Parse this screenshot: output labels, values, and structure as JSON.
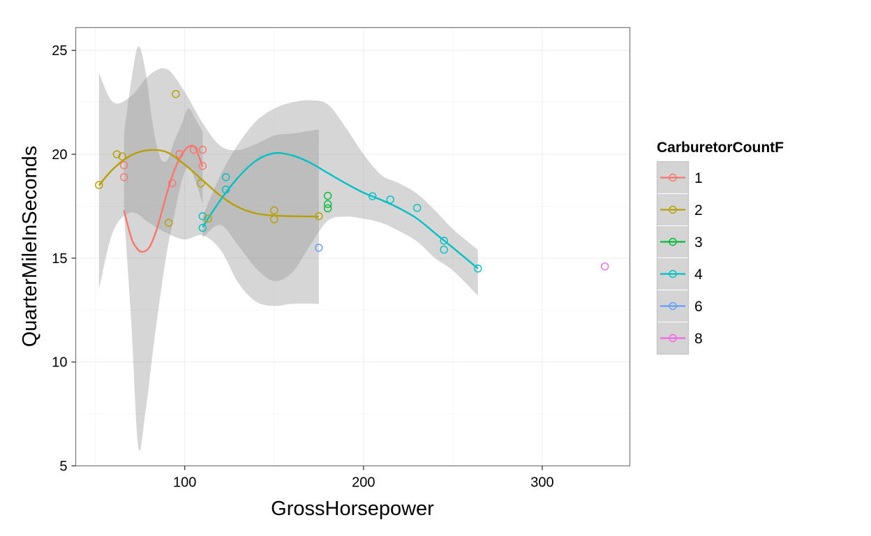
{
  "chart_data": {
    "type": "scatter",
    "xlabel": "GrossHorsepower",
    "ylabel": "QuarterMileInSeconds",
    "xlim": [
      39,
      349
    ],
    "ylim": [
      5,
      26.1
    ],
    "x_ticks": [
      100,
      200,
      300
    ],
    "y_ticks": [
      5,
      10,
      15,
      20,
      25
    ],
    "grid": true,
    "legend": {
      "title": "CarburetorCountF",
      "placement": "right"
    },
    "series": [
      {
        "name": "1",
        "color": "#F8766D",
        "points": [
          [
            66,
            19.47
          ],
          [
            66,
            18.9
          ],
          [
            93,
            18.61
          ],
          [
            97,
            20.01
          ],
          [
            105,
            20.22
          ],
          [
            110,
            19.44
          ],
          [
            110,
            20.22
          ]
        ],
        "smooth": [
          [
            66,
            17.3
          ],
          [
            70,
            16.0
          ],
          [
            73,
            15.5
          ],
          [
            76,
            15.3
          ],
          [
            80,
            15.5
          ],
          [
            84,
            16.3
          ],
          [
            88,
            17.5
          ],
          [
            92,
            18.7
          ],
          [
            96,
            19.6
          ],
          [
            100,
            20.2
          ],
          [
            103,
            20.4
          ],
          [
            106,
            20.3
          ],
          [
            110,
            19.4
          ]
        ],
        "ci_upper": [
          [
            66,
            21.0
          ],
          [
            70,
            23.5
          ],
          [
            74,
            25.2
          ],
          [
            78,
            24.0
          ],
          [
            82,
            21.5
          ],
          [
            86,
            19.9
          ],
          [
            90,
            19.7
          ],
          [
            94,
            20.6
          ],
          [
            98,
            21.4
          ],
          [
            102,
            22.2
          ],
          [
            106,
            21.7
          ],
          [
            110,
            21.1
          ]
        ],
        "ci_lower": [
          [
            66,
            17.2
          ],
          [
            70,
            12.0
          ],
          [
            74,
            5.9
          ],
          [
            78,
            7.6
          ],
          [
            82,
            10.4
          ],
          [
            86,
            13.0
          ],
          [
            90,
            15.3
          ],
          [
            94,
            17.0
          ],
          [
            98,
            18.6
          ],
          [
            102,
            19.4
          ],
          [
            106,
            18.7
          ],
          [
            110,
            17.6
          ]
        ]
      },
      {
        "name": "2",
        "color": "#B79F00",
        "points": [
          [
            52,
            18.52
          ],
          [
            62,
            20.0
          ],
          [
            65,
            19.9
          ],
          [
            91,
            16.7
          ],
          [
            95,
            22.9
          ],
          [
            109,
            18.6
          ],
          [
            113,
            16.9
          ],
          [
            150,
            16.87
          ],
          [
            150,
            17.3
          ],
          [
            175,
            17.02
          ]
        ],
        "smooth": [
          [
            52,
            18.5
          ],
          [
            60,
            19.3
          ],
          [
            70,
            19.95
          ],
          [
            80,
            20.2
          ],
          [
            90,
            20.1
          ],
          [
            100,
            19.5
          ],
          [
            110,
            18.75
          ],
          [
            120,
            18.0
          ],
          [
            130,
            17.45
          ],
          [
            140,
            17.15
          ],
          [
            150,
            17.05
          ],
          [
            160,
            17.02
          ],
          [
            175,
            17.0
          ]
        ],
        "ci_upper": [
          [
            52,
            23.9
          ],
          [
            60,
            22.5
          ],
          [
            70,
            22.8
          ],
          [
            80,
            23.8
          ],
          [
            90,
            24.1
          ],
          [
            100,
            23.0
          ],
          [
            110,
            21.5
          ],
          [
            120,
            20.4
          ],
          [
            130,
            20.2
          ],
          [
            140,
            20.5
          ],
          [
            150,
            20.9
          ],
          [
            160,
            21.0
          ],
          [
            175,
            21.2
          ]
        ],
        "ci_lower": [
          [
            52,
            13.5
          ],
          [
            60,
            16.3
          ],
          [
            70,
            17.2
          ],
          [
            80,
            16.7
          ],
          [
            90,
            16.2
          ],
          [
            100,
            15.9
          ],
          [
            110,
            16.1
          ],
          [
            120,
            15.4
          ],
          [
            130,
            13.8
          ],
          [
            140,
            12.9
          ],
          [
            150,
            12.7
          ],
          [
            160,
            12.8
          ],
          [
            175,
            12.8
          ]
        ]
      },
      {
        "name": "3",
        "color": "#00BA38",
        "points": [
          [
            180,
            17.4
          ],
          [
            180,
            17.6
          ],
          [
            180,
            18.0
          ]
        ]
      },
      {
        "name": "4",
        "color": "#00BFC4",
        "points": [
          [
            110,
            16.46
          ],
          [
            110,
            17.02
          ],
          [
            123,
            18.3
          ],
          [
            123,
            18.9
          ],
          [
            205,
            17.98
          ],
          [
            215,
            17.82
          ],
          [
            230,
            17.42
          ],
          [
            245,
            15.84
          ],
          [
            245,
            15.41
          ],
          [
            264,
            14.5
          ]
        ],
        "smooth": [
          [
            110,
            16.5
          ],
          [
            120,
            17.8
          ],
          [
            130,
            18.9
          ],
          [
            140,
            19.7
          ],
          [
            150,
            20.05
          ],
          [
            160,
            19.95
          ],
          [
            170,
            19.6
          ],
          [
            180,
            19.1
          ],
          [
            190,
            18.6
          ],
          [
            200,
            18.15
          ],
          [
            210,
            17.8
          ],
          [
            220,
            17.4
          ],
          [
            230,
            16.9
          ],
          [
            240,
            16.2
          ],
          [
            250,
            15.5
          ],
          [
            264,
            14.5
          ]
        ],
        "ci_upper": [
          [
            110,
            17.0
          ],
          [
            120,
            19.0
          ],
          [
            130,
            20.5
          ],
          [
            140,
            21.6
          ],
          [
            150,
            22.2
          ],
          [
            160,
            22.5
          ],
          [
            170,
            22.6
          ],
          [
            180,
            22.4
          ],
          [
            190,
            21.3
          ],
          [
            200,
            20.0
          ],
          [
            210,
            19.0
          ],
          [
            220,
            18.6
          ],
          [
            230,
            18.1
          ],
          [
            240,
            17.3
          ],
          [
            250,
            16.4
          ],
          [
            264,
            15.4
          ]
        ],
        "ci_lower": [
          [
            110,
            16.0
          ],
          [
            120,
            16.6
          ],
          [
            130,
            15.6
          ],
          [
            140,
            14.5
          ],
          [
            150,
            13.9
          ],
          [
            160,
            14.3
          ],
          [
            170,
            15.6
          ],
          [
            180,
            16.8
          ],
          [
            190,
            17.0
          ],
          [
            200,
            16.9
          ],
          [
            210,
            16.7
          ],
          [
            220,
            16.3
          ],
          [
            230,
            15.8
          ],
          [
            240,
            15.0
          ],
          [
            250,
            14.4
          ],
          [
            264,
            13.2
          ]
        ]
      },
      {
        "name": "6",
        "color": "#619CFF",
        "points": [
          [
            175,
            15.5
          ]
        ]
      },
      {
        "name": "8",
        "color": "#F564E3",
        "points": [
          [
            335,
            14.6
          ]
        ]
      }
    ]
  }
}
